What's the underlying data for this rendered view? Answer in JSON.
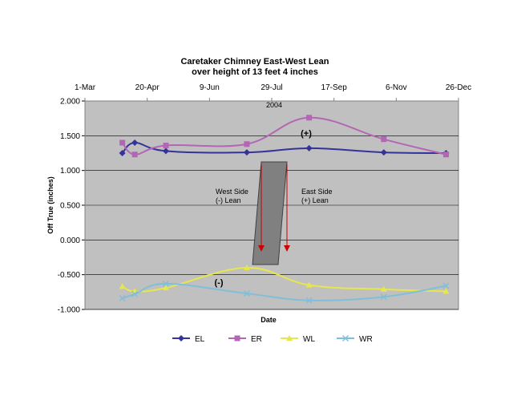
{
  "chart_data": {
    "type": "line",
    "title": [
      "Caretaker Chimney East-West Lean",
      "over height of 13 feet 4 inches"
    ],
    "xlabel": "Date",
    "ylabel": "Off True (inches)",
    "ylim": [
      -1.0,
      2.0
    ],
    "yticks": [
      2.0,
      1.5,
      1.0,
      0.5,
      0.0,
      -0.5,
      -1.0
    ],
    "ytick_labels": [
      "2.000",
      "1.500",
      "1.000",
      "0.500",
      "0.000",
      "-0.500",
      "-1.000"
    ],
    "x_axis_position": "top",
    "xlim_day": [
      60,
      360
    ],
    "xticks_day": [
      60,
      110,
      160,
      210,
      260,
      310,
      360
    ],
    "xtick_labels": [
      "1-Mar",
      "20-Apr",
      "9-Jun",
      "29-Jul",
      "17-Sep",
      "6-Nov",
      "26-Dec"
    ],
    "grid": "horizontal",
    "legend_position": "bottom",
    "series": [
      {
        "name": "EL",
        "color": "#333399",
        "marker": "diamond",
        "x": [
          90,
          100,
          125,
          190,
          240,
          300,
          350
        ],
        "values": [
          1.25,
          1.4,
          1.28,
          1.26,
          1.32,
          1.26,
          1.25
        ]
      },
      {
        "name": "ER",
        "color": "#B366B3",
        "marker": "square",
        "x": [
          90,
          100,
          125,
          190,
          240,
          300,
          350
        ],
        "values": [
          1.4,
          1.23,
          1.36,
          1.38,
          1.76,
          1.45,
          1.23
        ]
      },
      {
        "name": "WL",
        "color": "#E6E64D",
        "marker": "triangle",
        "x": [
          90,
          100,
          125,
          190,
          240,
          300,
          350
        ],
        "values": [
          -0.67,
          -0.74,
          -0.69,
          -0.4,
          -0.65,
          -0.71,
          -0.74
        ]
      },
      {
        "name": "WR",
        "color": "#80BFD9",
        "marker": "x",
        "x": [
          90,
          100,
          125,
          190,
          240,
          300,
          350
        ],
        "values": [
          -0.84,
          -0.78,
          -0.63,
          -0.77,
          -0.87,
          -0.82,
          -0.66
        ]
      }
    ],
    "annotations": {
      "year": "2004",
      "plus": "(+)",
      "minus": "(-)",
      "west_line1": "West Side",
      "west_line2": "(-) Lean",
      "east_line1": "East Side",
      "east_line2": "(+) Lean"
    },
    "colors": {
      "plot_bg": "#C0C0C0",
      "chimney_fill": "#808080",
      "chimney_edge": "#404040",
      "arrow": "#CC0000"
    }
  }
}
